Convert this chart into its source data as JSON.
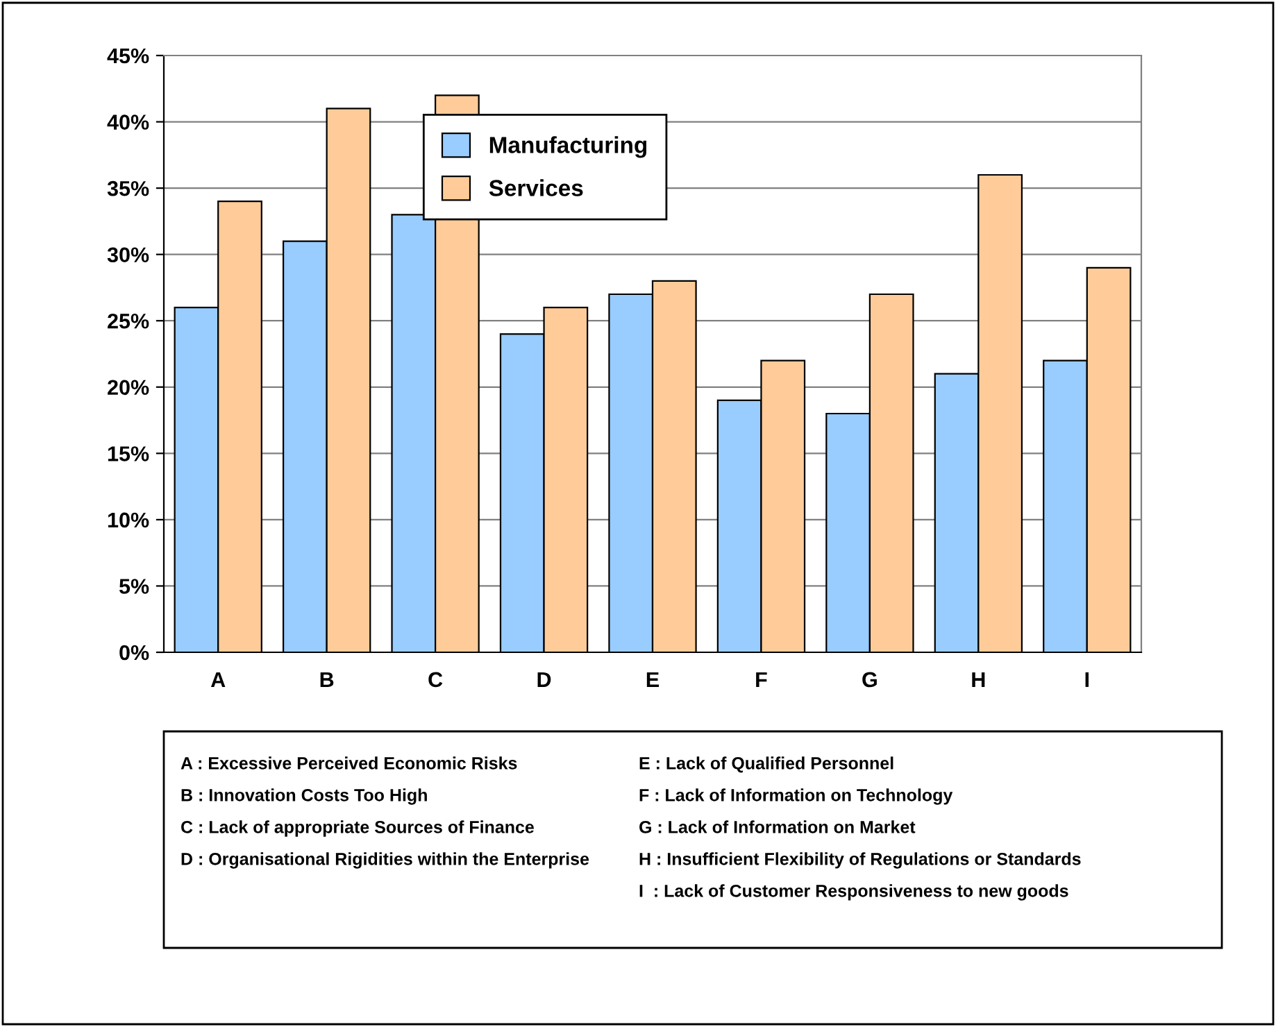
{
  "chart_data": {
    "type": "bar",
    "categories": [
      "A",
      "B",
      "C",
      "D",
      "E",
      "F",
      "G",
      "H",
      "I"
    ],
    "series": [
      {
        "name": "Manufacturing",
        "color": "#99ccff",
        "values": [
          26,
          31,
          33,
          24,
          27,
          19,
          18,
          21,
          22
        ]
      },
      {
        "name": "Services",
        "color": "#ffcc99",
        "values": [
          34,
          41,
          42,
          26,
          28,
          22,
          27,
          36,
          29
        ]
      }
    ],
    "ylim": [
      0,
      45
    ],
    "yticks": [
      {
        "value": 0,
        "label": "0%"
      },
      {
        "value": 5,
        "label": "5%"
      },
      {
        "value": 10,
        "label": "10%"
      },
      {
        "value": 15,
        "label": "15%"
      },
      {
        "value": 20,
        "label": "20%"
      },
      {
        "value": 25,
        "label": "25%"
      },
      {
        "value": 30,
        "label": "30%"
      },
      {
        "value": 35,
        "label": "35%"
      },
      {
        "value": 40,
        "label": "40%"
      },
      {
        "value": 45,
        "label": "45%"
      }
    ],
    "grid": "y",
    "legend": "top center",
    "annotations": [
      "A : Excessive Perceived Economic Risks",
      "B : Innovation Costs Too High",
      "C : Lack of appropriate Sources of Finance",
      "D : Organisational Rigidities within the Enterprise",
      "E : Lack of Qualified Personnel",
      "F : Lack of Information on Technology",
      "G : Lack of Information on Market",
      "H : Insufficient Flexibility of Regulations or Standards",
      "I  : Lack of Customer Responsiveness to new goods"
    ]
  }
}
